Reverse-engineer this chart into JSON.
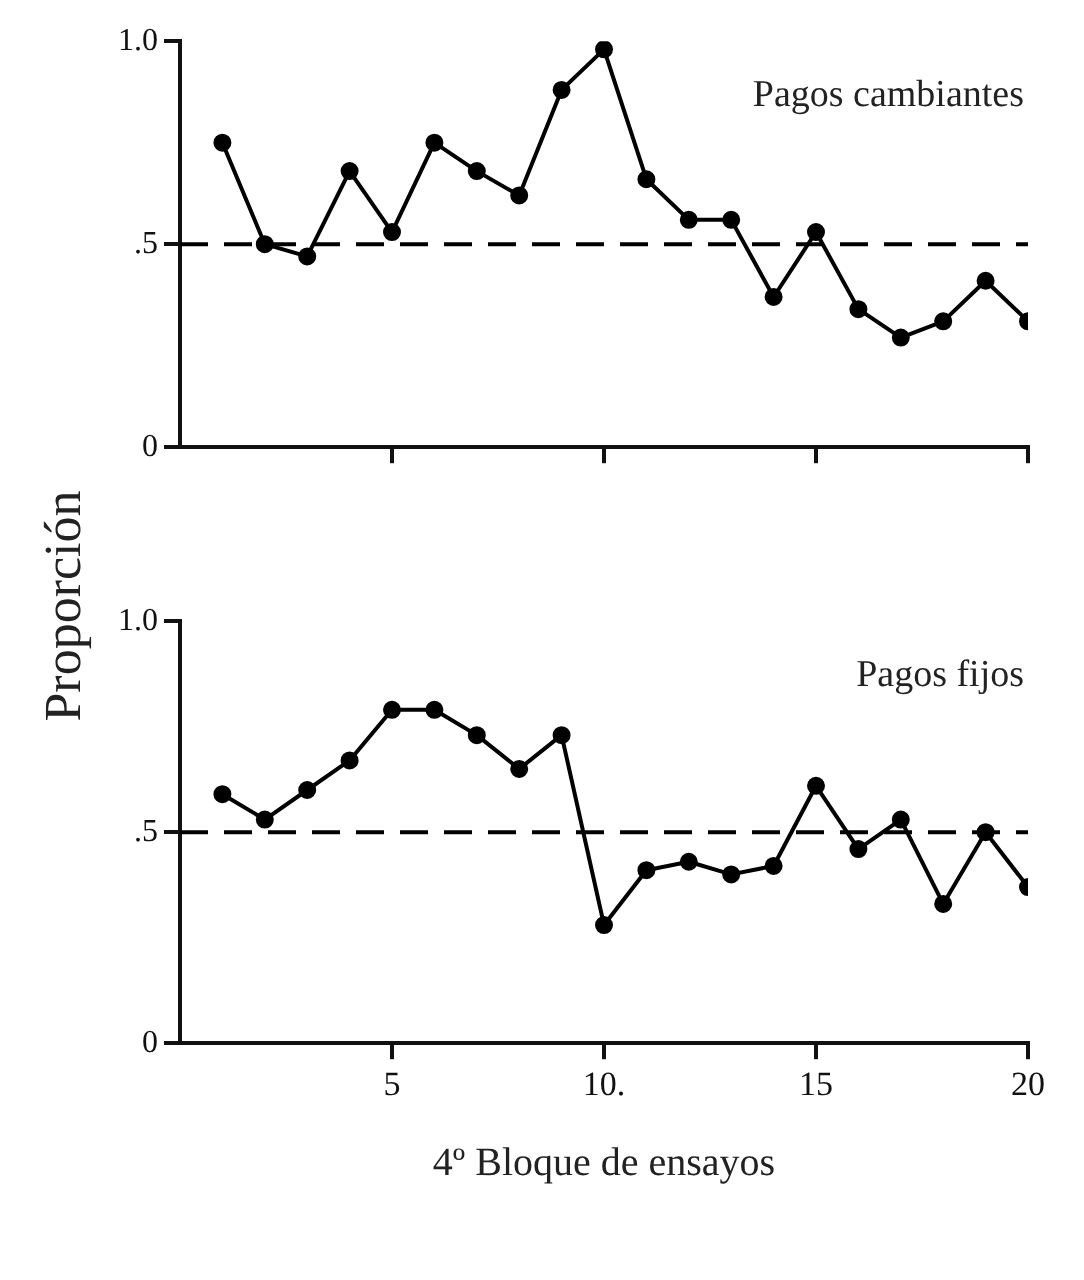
{
  "chart_data": [
    {
      "type": "line",
      "ylabel": "Proporción",
      "annotations": [
        "Pagos cambiantes"
      ],
      "x": [
        1,
        2,
        3,
        4,
        5,
        6,
        7,
        8,
        9,
        10,
        11,
        12,
        13,
        14,
        15,
        16,
        17,
        18,
        19,
        20
      ],
      "series": [
        {
          "color": "#000000",
          "values": [
            0.75,
            0.5,
            0.47,
            0.68,
            0.53,
            0.75,
            0.68,
            0.62,
            0.88,
            0.98,
            0.66,
            0.56,
            0.56,
            0.37,
            0.53,
            0.34,
            0.27,
            0.31,
            0.41,
            0.31
          ]
        }
      ],
      "xlim": [
        0,
        20
      ],
      "xticks": [
        {
          "value": 5,
          "label": null
        },
        {
          "value": 10,
          "label": null
        },
        {
          "value": 15,
          "label": null
        },
        {
          "value": 20,
          "label": null
        }
      ],
      "ylim": [
        0,
        1
      ],
      "yticks": [
        {
          "value": 0,
          "label": "0"
        },
        {
          "value": 0.5,
          "label": ".5"
        },
        {
          "value": 1,
          "label": "1.0"
        }
      ],
      "tick_labels": "y",
      "grid": false,
      "legend": false,
      "marker": "circle",
      "line_style": "solid",
      "ref_lines": [
        {
          "axis": "y",
          "value": 0.5,
          "line_style": "dashed",
          "color": "#000000"
        }
      ]
    },
    {
      "type": "line",
      "xlabel": "4º Bloque de ensayos",
      "annotations": [
        "Pagos fijos"
      ],
      "x": [
        1,
        2,
        3,
        4,
        5,
        6,
        7,
        8,
        9,
        10,
        11,
        12,
        13,
        14,
        15,
        16,
        17,
        18,
        19,
        20
      ],
      "series": [
        {
          "color": "#000000",
          "values": [
            0.59,
            0.53,
            0.6,
            0.67,
            0.79,
            0.79,
            0.73,
            0.65,
            0.73,
            0.28,
            0.41,
            0.43,
            0.4,
            0.42,
            0.61,
            0.46,
            0.53,
            0.33,
            0.5,
            0.37
          ]
        }
      ],
      "xlim": [
        0,
        20
      ],
      "xticks": [
        5,
        {
          "value": 10,
          "label": "10."
        },
        15,
        20
      ],
      "ylim": [
        0,
        1
      ],
      "yticks": [
        {
          "value": 0,
          "label": "0"
        },
        {
          "value": 0.5,
          "label": ".5"
        },
        {
          "value": 1,
          "label": "1.0"
        }
      ],
      "grid": false,
      "legend": false,
      "marker": "circle",
      "line_style": "solid",
      "ref_lines": [
        {
          "axis": "y",
          "value": 0.5,
          "line_style": "dashed",
          "color": "#000000"
        }
      ]
    }
  ]
}
